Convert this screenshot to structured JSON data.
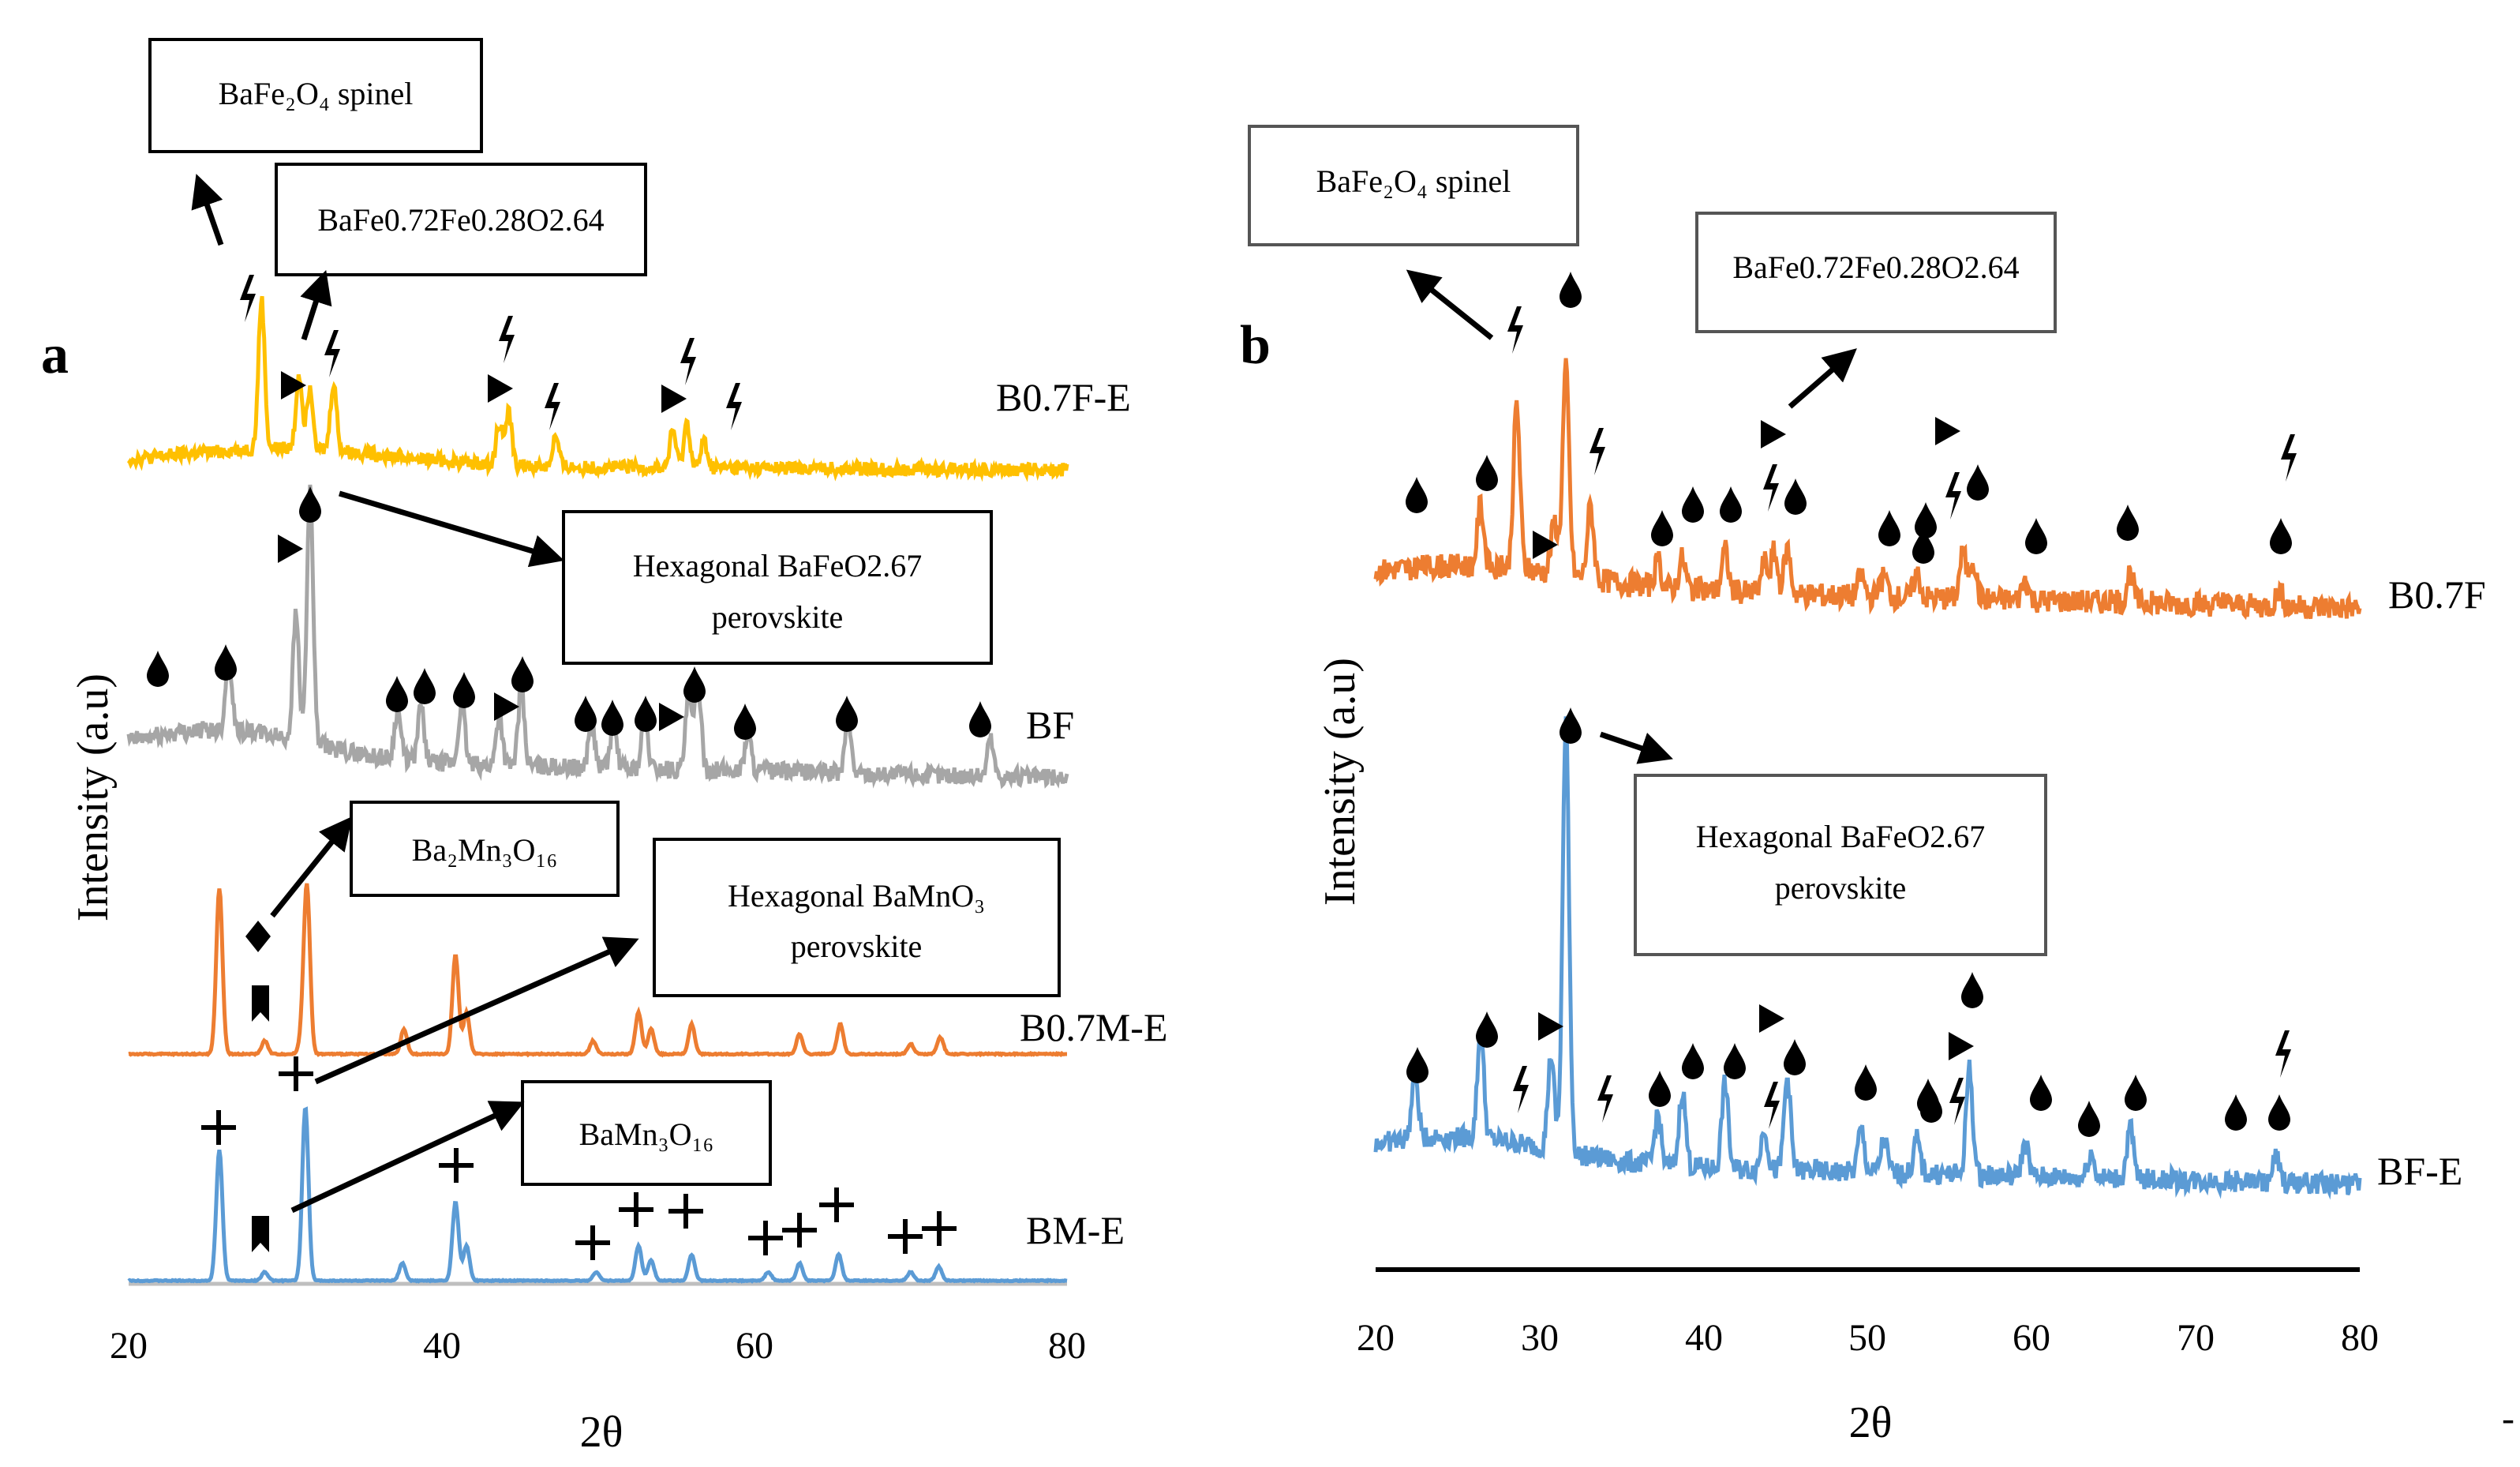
{
  "chart_data": [
    {
      "panel": "a",
      "type": "line",
      "xlabel": "2θ",
      "ylabel": "Intensity (a.u)",
      "xlim": [
        20,
        80
      ],
      "xticks": [
        20,
        40,
        60,
        80
      ],
      "series": [
        {
          "name": "B0.7F-E",
          "color": "#ffc000",
          "peaks": [
            [
              28.5,
              1.0
            ],
            [
              30.9,
              0.5
            ],
            [
              31.6,
              0.42
            ],
            [
              33.1,
              0.45
            ],
            [
              43.7,
              0.28
            ],
            [
              44.3,
              0.35
            ],
            [
              47.3,
              0.2
            ],
            [
              54.8,
              0.25
            ],
            [
              55.7,
              0.3
            ],
            [
              56.8,
              0.18
            ]
          ]
        },
        {
          "name": "BF",
          "color": "#a6a6a6",
          "peaks": [
            [
              26.4,
              0.3
            ],
            [
              30.7,
              0.5
            ],
            [
              31.6,
              1.0
            ],
            [
              37.2,
              0.2
            ],
            [
              38.7,
              0.22
            ],
            [
              41.3,
              0.25
            ],
            [
              43.7,
              0.2
            ],
            [
              45.1,
              0.3
            ],
            [
              49.6,
              0.18
            ],
            [
              51.0,
              0.18
            ],
            [
              53.0,
              0.2
            ],
            [
              55.8,
              0.28
            ],
            [
              56.4,
              0.35
            ],
            [
              59.6,
              0.15
            ],
            [
              66.0,
              0.2
            ],
            [
              75.1,
              0.15
            ]
          ]
        },
        {
          "name": "B0.7M-E",
          "color": "#ed7d31",
          "peaks": [
            [
              25.8,
              1.0
            ],
            [
              28.7,
              0.08
            ],
            [
              31.1,
              0.1
            ],
            [
              31.4,
              1.0
            ],
            [
              37.6,
              0.15
            ],
            [
              40.9,
              0.6
            ],
            [
              41.6,
              0.25
            ],
            [
              49.7,
              0.08
            ],
            [
              52.6,
              0.25
            ],
            [
              53.4,
              0.15
            ],
            [
              56.0,
              0.18
            ],
            [
              62.9,
              0.12
            ],
            [
              65.5,
              0.18
            ],
            [
              70.0,
              0.06
            ],
            [
              71.9,
              0.1
            ]
          ]
        },
        {
          "name": "BM-E",
          "color": "#5b9bd5",
          "peaks": [
            [
              25.8,
              0.75
            ],
            [
              28.7,
              0.05
            ],
            [
              31.3,
              1.0
            ],
            [
              37.5,
              0.1
            ],
            [
              40.9,
              0.45
            ],
            [
              41.6,
              0.2
            ],
            [
              49.9,
              0.05
            ],
            [
              52.6,
              0.2
            ],
            [
              53.4,
              0.12
            ],
            [
              56.0,
              0.15
            ],
            [
              60.9,
              0.05
            ],
            [
              62.9,
              0.1
            ],
            [
              65.4,
              0.15
            ],
            [
              70.0,
              0.05
            ],
            [
              71.8,
              0.08
            ]
          ]
        }
      ],
      "annotations": [
        "BaFe₂O₄ spinel",
        "BaFe0.72Fe0.28O2.64",
        "Hexagonal BaFeO2.67 perovskite",
        "Ba₂Mn₃O₁₆",
        "Hexagonal BaMnO₃ perovskite",
        "BaMn₃O₁₆"
      ]
    },
    {
      "panel": "b",
      "type": "line",
      "xlabel": "2θ",
      "ylabel": "Intensity (a.u)",
      "xlim": [
        20,
        80
      ],
      "xticks": [
        20,
        30,
        40,
        50,
        60,
        70,
        80
      ],
      "series": [
        {
          "name": "B0.7F",
          "color": "#ed7d31",
          "peaks": [
            [
              26.4,
              0.3
            ],
            [
              28.6,
              0.8
            ],
            [
              30.9,
              0.25
            ],
            [
              31.6,
              1.0
            ],
            [
              33.1,
              0.35
            ],
            [
              37.2,
              0.12
            ],
            [
              38.7,
              0.15
            ],
            [
              41.3,
              0.2
            ],
            [
              43.7,
              0.15
            ],
            [
              44.3,
              0.2
            ],
            [
              45.1,
              0.22
            ],
            [
              49.6,
              0.1
            ],
            [
              51.0,
              0.1
            ],
            [
              53.0,
              0.12
            ],
            [
              55.8,
              0.22
            ],
            [
              56.4,
              0.2
            ],
            [
              59.6,
              0.1
            ],
            [
              66.0,
              0.15
            ],
            [
              75.1,
              0.08
            ]
          ]
        },
        {
          "name": "BF-E",
          "color": "#5b9bd5",
          "peaks": [
            [
              22.4,
              0.15
            ],
            [
              26.4,
              0.25
            ],
            [
              30.7,
              0.22
            ],
            [
              31.6,
              1.0
            ],
            [
              37.2,
              0.12
            ],
            [
              38.7,
              0.18
            ],
            [
              41.3,
              0.2
            ],
            [
              43.7,
              0.1
            ],
            [
              45.1,
              0.22
            ],
            [
              49.6,
              0.1
            ],
            [
              51.0,
              0.08
            ],
            [
              53.0,
              0.08
            ],
            [
              56.2,
              0.25
            ],
            [
              59.6,
              0.08
            ],
            [
              63.6,
              0.06
            ],
            [
              66.0,
              0.12
            ],
            [
              74.9,
              0.06
            ]
          ]
        }
      ],
      "annotations": [
        "BaFe₂O₄ spinel",
        "BaFe0.72Fe0.28O2.64",
        "Hexagonal BaFeO2.67 perovskite"
      ]
    }
  ],
  "labels": {
    "a_panel": "a",
    "b_panel": "b",
    "a_ylabel": "Intensity (a.u)",
    "b_ylabel": "Intensity (a.u)",
    "a_xlabel": "2θ",
    "b_xlabel": "2θ",
    "a_series": [
      "B0.7F-E",
      "BF",
      "B0.7M-E",
      "BM-E"
    ],
    "b_series": [
      "B0.7F",
      "BF-E"
    ],
    "a_ticks": [
      "20",
      "40",
      "60",
      "80"
    ],
    "b_ticks": [
      "20",
      "30",
      "40",
      "50",
      "60",
      "70",
      "80"
    ],
    "box_spinel_a": "BaFe₂O₄ spinel",
    "box_bafe072_a": "BaFe0.72Fe0.28O2.64",
    "box_hex_bafeo_a_1": "Hexagonal BaFeO2.67",
    "box_hex_bafeo_a_2": "perovskite",
    "box_ba2mn3o16": "Ba₂Mn₃O₁₆",
    "box_hex_bamno3_1": "Hexagonal BaMnO₃",
    "box_hex_bamno3_2": "perovskite",
    "box_bamn3o16": "BaMn₃O₁₆",
    "box_spinel_b": "BaFe₂O₄ spinel",
    "box_bafe072_b": "BaFe0.72Fe0.28O2.64",
    "box_hex_bafeo_b_1": "Hexagonal BaFeO2.67",
    "box_hex_bafeo_b_2": "perovskite",
    "stray_mark": "-"
  },
  "colors": {
    "yellow": "#ffc000",
    "gray": "#a6a6a6",
    "orange": "#ed7d31",
    "blue": "#5b9bd5"
  }
}
